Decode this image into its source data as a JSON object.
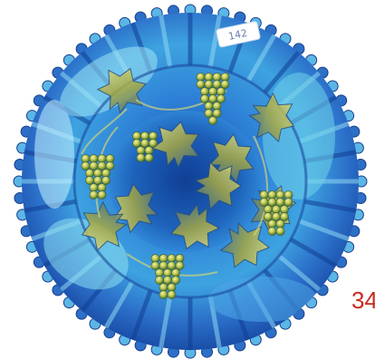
{
  "photo": {
    "subject_icon": "carnival-glass-grape-plate",
    "sticker_text": "142",
    "lot_number": "34",
    "colors": {
      "glass_base": "#1f6fd0",
      "glass_light": "#7fd0f0",
      "glass_dark": "#0b3a8a",
      "iridescent_gold": "#c9c24a",
      "lot_number": "#c8281e",
      "background": "#ffffff"
    }
  }
}
